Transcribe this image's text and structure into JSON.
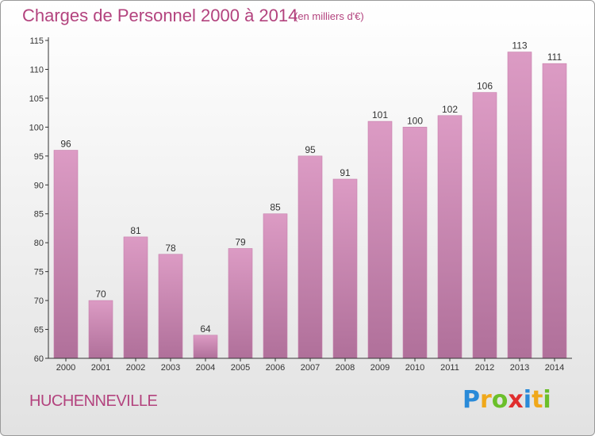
{
  "header": {
    "title": "Charges de Personnel 2000 à 2014",
    "subtitle": "(en milliers d'€)"
  },
  "footer": {
    "town": "HUCHENNEVILLE",
    "logo_letters": [
      "P",
      "r",
      "o",
      "x",
      "i",
      "t",
      "i"
    ],
    "logo_colors": [
      "#2a8ad8",
      "#f0a81a",
      "#6bbf2a",
      "#e02e2e",
      "#2a8ad8",
      "#f0a81a",
      "#6bbf2a"
    ]
  },
  "colors": {
    "bar": "#dc9bc4",
    "bar_dark": "#b0709a",
    "text": "#b3437e",
    "axis": "#333333"
  },
  "chart_data": {
    "type": "bar",
    "title": "Charges de Personnel 2000 à 2014",
    "subtitle": "(en milliers d'€)",
    "categories": [
      "2000",
      "2001",
      "2002",
      "2003",
      "2004",
      "2005",
      "2006",
      "2007",
      "2008",
      "2009",
      "2010",
      "2011",
      "2012",
      "2013",
      "2014"
    ],
    "values": [
      96,
      70,
      81,
      78,
      64,
      79,
      85,
      95,
      91,
      101,
      100,
      102,
      106,
      113,
      111
    ],
    "ylim": [
      60,
      115
    ],
    "yticks": [
      60,
      65,
      70,
      75,
      80,
      85,
      90,
      95,
      100,
      105,
      110,
      115
    ],
    "grid": false,
    "legend": "none"
  }
}
